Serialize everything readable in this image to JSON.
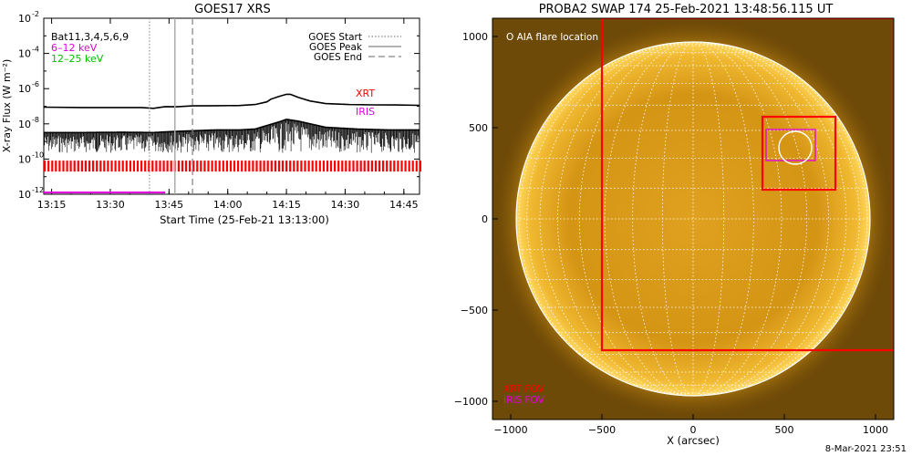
{
  "footer": {
    "timestamp": "8-Mar-2021 23:51"
  },
  "chart_data": [
    {
      "type": "line",
      "title": "GOES17 XRS",
      "xlabel": "Start Time (25-Feb-21 13:13:00)",
      "ylabel": "X-ray Flux (W m⁻²)",
      "x_unit": "minutes after 13:13:00",
      "xlim": [
        0,
        96
      ],
      "ylim_log10": [
        -12,
        -2
      ],
      "x_ticks": [
        {
          "label": "13:15",
          "value": 2
        },
        {
          "label": "13:30",
          "value": 17
        },
        {
          "label": "13:45",
          "value": 32
        },
        {
          "label": "14:00",
          "value": 47
        },
        {
          "label": "14:15",
          "value": 62
        },
        {
          "label": "14:30",
          "value": 77
        },
        {
          "label": "14:45",
          "value": 92
        }
      ],
      "y_ticks": [
        {
          "base": "10",
          "exp": "-2",
          "value": -2
        },
        {
          "base": "10",
          "exp": "-4",
          "value": -4
        },
        {
          "base": "10",
          "exp": "-6",
          "value": -6
        },
        {
          "base": "10",
          "exp": "-8",
          "value": -8
        },
        {
          "base": "10",
          "exp": "-10",
          "value": -10
        },
        {
          "base": "10",
          "exp": "-12",
          "value": -12
        }
      ],
      "legend_left": [
        {
          "label": "Bat11,3,4,5,6,9",
          "color": "#000000"
        },
        {
          "label": "6–12 keV",
          "color": "#e000e0"
        },
        {
          "label": "12–25 keV",
          "color": "#00c000"
        }
      ],
      "legend_right": [
        {
          "label": "GOES Start",
          "style": "dotted"
        },
        {
          "label": "GOES Peak",
          "style": "solid"
        },
        {
          "label": "GOES End",
          "style": "dashed"
        }
      ],
      "events": {
        "goes_start": 27,
        "goes_peak": 33.5,
        "goes_end": 38
      },
      "labels": {
        "xrt": "XRT",
        "iris": "IRIS"
      },
      "colors": {
        "xrt": "#ff0000",
        "iris": "#e000e0"
      },
      "series": [
        {
          "key": "long_channel",
          "x": [
            0,
            10,
            20,
            25,
            28,
            31,
            34,
            38,
            44,
            50,
            54,
            57,
            58,
            60,
            62,
            63,
            65,
            68,
            72,
            78,
            84,
            90,
            96
          ],
          "log10_y": [
            -7.05,
            -7.07,
            -7.07,
            -7.07,
            -7.12,
            -7.02,
            -7.03,
            -6.98,
            -6.97,
            -6.96,
            -6.9,
            -6.75,
            -6.6,
            -6.45,
            -6.32,
            -6.32,
            -6.5,
            -6.7,
            -6.85,
            -6.9,
            -6.92,
            -6.93,
            -6.95
          ]
        },
        {
          "key": "short_channel",
          "x": [
            0,
            10,
            20,
            28,
            32,
            38,
            44,
            50,
            54,
            57,
            60,
            62,
            65,
            68,
            72,
            80,
            88,
            96
          ],
          "log10_y": [
            -8.5,
            -8.5,
            -8.48,
            -8.5,
            -8.45,
            -8.4,
            -8.35,
            -8.35,
            -8.3,
            -8.1,
            -7.9,
            -7.75,
            -7.85,
            -8.0,
            -8.2,
            -8.3,
            -8.35,
            -8.35
          ],
          "noise_floor_log10": -9.3
        },
        {
          "key": "xrt_coverage",
          "log10_y": -10.4,
          "x_range": [
            0,
            96
          ]
        },
        {
          "key": "iris_coverage",
          "log10_y": -11.9,
          "x_range": [
            0,
            31
          ]
        }
      ]
    },
    {
      "type": "image",
      "title": "PROBA2 SWAP 174 25-Feb-2021 13:48:56.115 UT",
      "xlabel": "X (arcsec)",
      "ylabel": "",
      "xlim": [
        -1100,
        1100
      ],
      "ylim": [
        -1100,
        1100
      ],
      "x_ticks": [
        -1000,
        -500,
        0,
        500,
        1000
      ],
      "y_ticks": [
        -1000,
        -500,
        0,
        500,
        1000
      ],
      "tick_labels_x": [
        "−1000",
        "−500",
        "0",
        "500",
        "1000"
      ],
      "tick_labels_y": [
        "−1000",
        "−500",
        "0",
        "500",
        "1000"
      ],
      "solar_radius_arcsec": 970,
      "legend_top": "O AIA flare location",
      "fov_labels": [
        {
          "label": "XRT FOV",
          "color": "#ff0000"
        },
        {
          "label": "IRIS FOV",
          "color": "#e000e0"
        }
      ],
      "xrt_large_fov": {
        "x": [
          -500,
          1100
        ],
        "y": [
          -720,
          1100
        ]
      },
      "xrt_small_fov": {
        "x": [
          380,
          780
        ],
        "y": [
          160,
          560
        ]
      },
      "iris_fov": {
        "x": [
          400,
          670
        ],
        "y": [
          320,
          490
        ]
      },
      "aia_flare_location": {
        "x": 560,
        "y": 390,
        "r": 90
      },
      "colors": {
        "xrt": "#ff0000",
        "iris": "#e000e0"
      }
    }
  ]
}
